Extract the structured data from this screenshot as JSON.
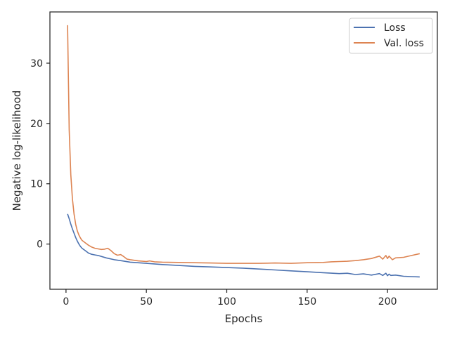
{
  "chart_data": {
    "type": "line",
    "title": "",
    "xlabel": "Epochs",
    "ylabel": "Negative log-likelihood",
    "xlim": [
      -10,
      231
    ],
    "ylim": [
      -7.5,
      38.5
    ],
    "xticks": [
      0,
      50,
      100,
      150,
      200
    ],
    "yticks": [
      0,
      10,
      20,
      30
    ],
    "grid": false,
    "legend_position": "top-right",
    "series": [
      {
        "name": "Loss",
        "color": "#4c72b0",
        "x": [
          1,
          2,
          3,
          4,
          5,
          6,
          7,
          8,
          9,
          10,
          12,
          14,
          16,
          18,
          20,
          25,
          30,
          35,
          40,
          50,
          60,
          70,
          80,
          90,
          100,
          110,
          120,
          130,
          140,
          150,
          160,
          170,
          175,
          180,
          185,
          190,
          195,
          197,
          199,
          200,
          201,
          202,
          205,
          210,
          215,
          220
        ],
        "y": [
          5.0,
          4.2,
          3.3,
          2.5,
          1.8,
          1.1,
          0.5,
          0.0,
          -0.4,
          -0.7,
          -1.1,
          -1.5,
          -1.7,
          -1.8,
          -1.9,
          -2.3,
          -2.6,
          -2.8,
          -3.0,
          -3.2,
          -3.4,
          -3.55,
          -3.7,
          -3.8,
          -3.9,
          -4.0,
          -4.15,
          -4.3,
          -4.45,
          -4.6,
          -4.75,
          -4.9,
          -4.85,
          -5.05,
          -4.95,
          -5.15,
          -4.9,
          -5.2,
          -4.85,
          -5.25,
          -5.0,
          -5.2,
          -5.15,
          -5.35,
          -5.4,
          -5.45
        ]
      },
      {
        "name": "Val. loss",
        "color": "#dd8452",
        "x": [
          1,
          2,
          3,
          4,
          5,
          6,
          7,
          8,
          9,
          10,
          12,
          14,
          16,
          18,
          20,
          22,
          24,
          26,
          28,
          30,
          32,
          34,
          36,
          38,
          40,
          45,
          50,
          52,
          55,
          60,
          70,
          80,
          90,
          100,
          110,
          120,
          130,
          140,
          150,
          160,
          165,
          170,
          175,
          180,
          185,
          190,
          195,
          197,
          199,
          200,
          201,
          203,
          205,
          210,
          215,
          220
        ],
        "y": [
          36.3,
          19.0,
          11.5,
          7.5,
          5.0,
          3.3,
          2.2,
          1.5,
          1.0,
          0.6,
          0.2,
          -0.2,
          -0.5,
          -0.7,
          -0.8,
          -0.9,
          -0.85,
          -0.7,
          -1.1,
          -1.6,
          -1.85,
          -1.75,
          -2.1,
          -2.5,
          -2.6,
          -2.8,
          -2.9,
          -2.8,
          -2.95,
          -3.0,
          -3.05,
          -3.1,
          -3.15,
          -3.2,
          -3.2,
          -3.2,
          -3.15,
          -3.2,
          -3.1,
          -3.05,
          -2.95,
          -2.9,
          -2.85,
          -2.75,
          -2.6,
          -2.4,
          -2.0,
          -2.5,
          -1.9,
          -2.4,
          -2.0,
          -2.6,
          -2.3,
          -2.2,
          -1.9,
          -1.6
        ]
      }
    ]
  }
}
